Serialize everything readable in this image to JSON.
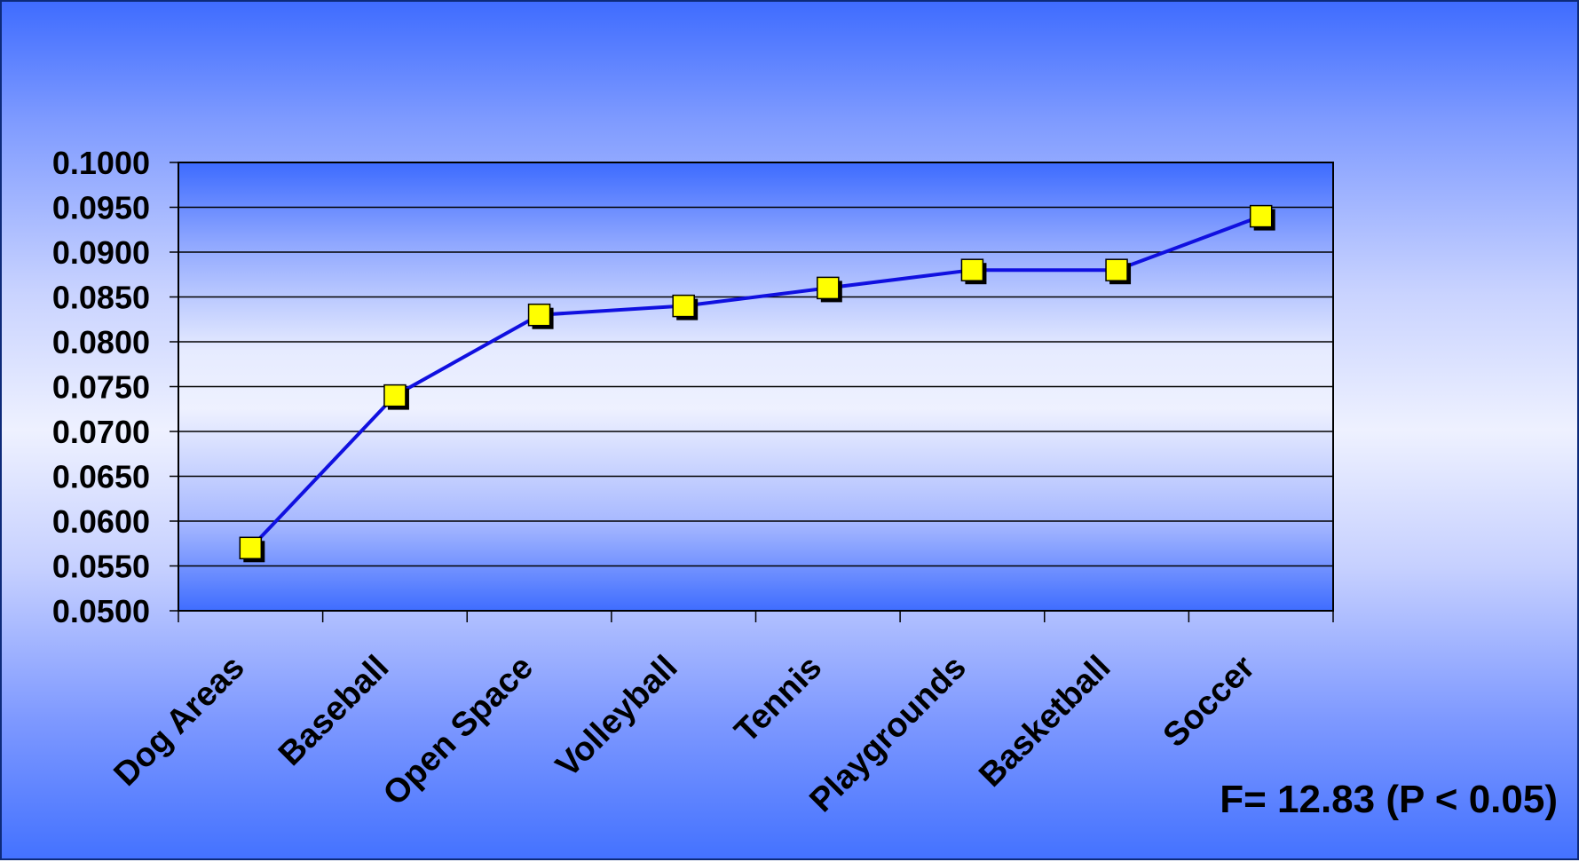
{
  "chart_data": {
    "type": "line",
    "categories": [
      "Dog Areas",
      "Baseball",
      "Open Space",
      "Volleyball",
      "Tennis",
      "Playgrounds",
      "Basketball",
      "Soccer"
    ],
    "series": [
      {
        "values": [
          0.057,
          0.074,
          0.083,
          0.084,
          0.086,
          0.088,
          0.088,
          0.094
        ]
      }
    ],
    "ylim": [
      0.05,
      0.1
    ],
    "yticks": [
      0.05,
      0.055,
      0.06,
      0.065,
      0.07,
      0.075,
      0.08,
      0.085,
      0.09,
      0.095,
      0.1
    ],
    "ytick_labels": [
      "0.0500",
      "0.0550",
      "0.0600",
      "0.0650",
      "0.0700",
      "0.0750",
      "0.0800",
      "0.0850",
      "0.0900",
      "0.0950",
      "0.1000"
    ],
    "grid": true,
    "legend": "none",
    "annotation": "F= 12.83 (P < 0.05)",
    "colors": {
      "line": "#1010e0",
      "marker": "#ffff00",
      "marker_border": "#000000",
      "gridline": "#000000"
    }
  }
}
